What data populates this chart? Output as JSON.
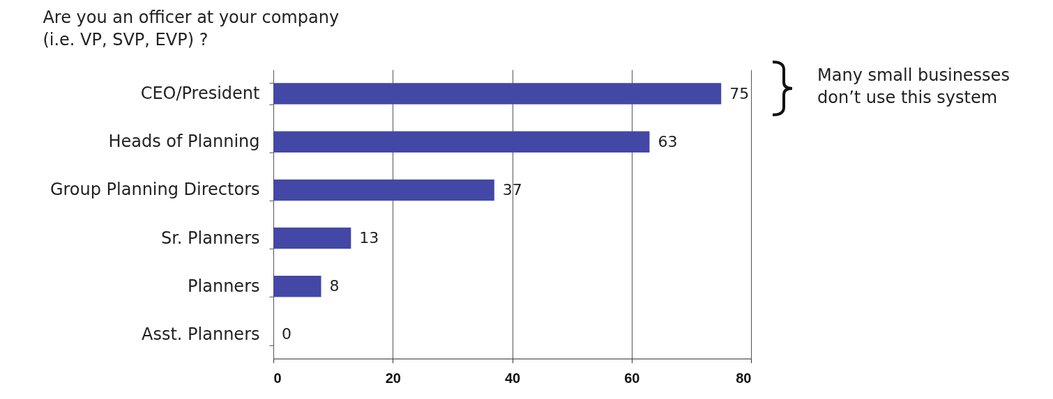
{
  "chart_data": {
    "type": "bar",
    "orientation": "horizontal",
    "title": "Are you an officer at your company\n(i.e. VP, SVP, EVP) ?",
    "categories": [
      "CEO/President",
      "Heads of Planning",
      "Group Planning Directors",
      "Sr. Planners",
      "Planners",
      "Asst. Planners"
    ],
    "values": [
      75,
      63,
      37,
      13,
      8,
      0
    ],
    "color": "#4347a6",
    "xlim": [
      0,
      80
    ],
    "xticks": [
      0,
      20,
      40,
      60,
      80
    ],
    "grid": "x",
    "data_labels": true,
    "annotations": [
      "Many small businesses\ndon’t use this system"
    ]
  }
}
